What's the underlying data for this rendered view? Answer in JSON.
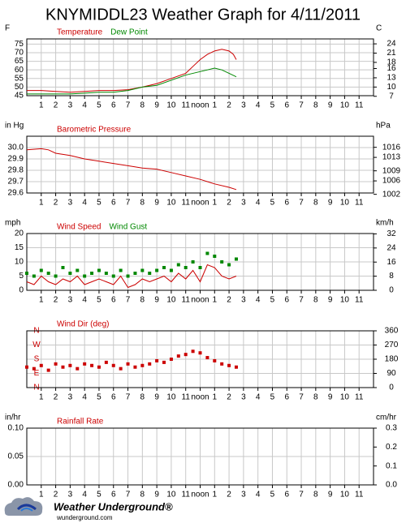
{
  "title": "KNYMIDDL23 Weather Graph for 4/11/2011",
  "chart_data": [
    {
      "type": "line",
      "y_unit": "F",
      "y2_unit": "C",
      "xlim": [
        0,
        24
      ],
      "xticks": [
        1,
        2,
        3,
        4,
        5,
        6,
        7,
        8,
        9,
        10,
        11,
        {
          "value": 12,
          "label": "noon"
        },
        {
          "value": 13,
          "label": "1"
        },
        {
          "value": 14,
          "label": "2"
        },
        {
          "value": 15,
          "label": "3"
        },
        {
          "value": 16,
          "label": "4"
        },
        {
          "value": 17,
          "label": "5"
        },
        {
          "value": 18,
          "label": "6"
        },
        {
          "value": 19,
          "label": "7"
        },
        {
          "value": 20,
          "label": "8"
        },
        {
          "value": 21,
          "label": "9"
        },
        {
          "value": 22,
          "label": "10"
        },
        {
          "value": 23,
          "label": "11"
        }
      ],
      "ylim": [
        45,
        78
      ],
      "yticks": [
        45,
        50,
        55,
        60,
        65,
        70,
        75
      ],
      "y2lim": [
        7.2,
        25.6
      ],
      "y2ticks": [
        7,
        10,
        13,
        16,
        18,
        21,
        24
      ],
      "series": [
        {
          "name": "Temperature",
          "color": "#cc0000",
          "mark": "line",
          "x": [
            0,
            1,
            2,
            3,
            4,
            5,
            6,
            7,
            8,
            9,
            10,
            11,
            11.5,
            12,
            12.5,
            13,
            13.5,
            14,
            14.3,
            14.5
          ],
          "values": [
            48,
            48,
            47.5,
            47,
            47.5,
            48,
            48,
            48.5,
            50,
            52,
            55,
            58,
            62,
            66,
            69,
            71,
            72,
            71,
            69,
            66
          ]
        },
        {
          "name": "Dew Point",
          "color": "#008800",
          "mark": "line",
          "x": [
            0,
            1,
            2,
            3,
            4,
            5,
            6,
            7,
            8,
            9,
            10,
            11,
            12,
            12.5,
            13,
            13.5,
            14,
            14.5
          ],
          "values": [
            46,
            46,
            46,
            46,
            46.5,
            47,
            47,
            48,
            50,
            51,
            54,
            57,
            59,
            60,
            61,
            60,
            58,
            56
          ]
        }
      ]
    },
    {
      "type": "line",
      "y_unit": "in Hg",
      "y2_unit": "hPa",
      "xlim": [
        0,
        24
      ],
      "xticks": [
        1,
        2,
        3,
        4,
        5,
        6,
        7,
        8,
        9,
        10,
        11,
        {
          "value": 12,
          "label": "noon"
        },
        {
          "value": 13,
          "label": "1"
        },
        {
          "value": 14,
          "label": "2"
        },
        {
          "value": 15,
          "label": "3"
        },
        {
          "value": 16,
          "label": "4"
        },
        {
          "value": 17,
          "label": "5"
        },
        {
          "value": 18,
          "label": "6"
        },
        {
          "value": 19,
          "label": "7"
        },
        {
          "value": 20,
          "label": "8"
        },
        {
          "value": 21,
          "label": "9"
        },
        {
          "value": 22,
          "label": "10"
        },
        {
          "value": 23,
          "label": "11"
        }
      ],
      "ylim": [
        29.6,
        30.1
      ],
      "yticks": [
        {
          "value": 29.6,
          "label": "29.6"
        },
        {
          "value": 29.7,
          "label": "29.7"
        },
        {
          "value": 29.8,
          "label": "29.8"
        },
        {
          "value": 29.9,
          "label": "29.9"
        },
        {
          "value": 30.0,
          "label": "30.0"
        }
      ],
      "y2lim": [
        1002.4,
        1019.3
      ],
      "y2ticks": [
        1002,
        1006,
        1009,
        1013,
        1016
      ],
      "series": [
        {
          "name": "Barometric Pressure",
          "color": "#cc0000",
          "mark": "line",
          "x": [
            0,
            1,
            1.5,
            2,
            3,
            4,
            5,
            6,
            7,
            8,
            9,
            10,
            11,
            12,
            13,
            14,
            14.5
          ],
          "values": [
            29.98,
            29.99,
            29.98,
            29.95,
            29.93,
            29.9,
            29.88,
            29.86,
            29.84,
            29.82,
            29.81,
            29.78,
            29.75,
            29.72,
            29.68,
            29.65,
            29.63
          ]
        }
      ]
    },
    {
      "type": "line",
      "y_unit": "mph",
      "y2_unit": "km/h",
      "xlim": [
        0,
        24
      ],
      "xticks": [
        1,
        2,
        3,
        4,
        5,
        6,
        7,
        8,
        9,
        10,
        11,
        {
          "value": 12,
          "label": "noon"
        },
        {
          "value": 13,
          "label": "1"
        },
        {
          "value": 14,
          "label": "2"
        },
        {
          "value": 15,
          "label": "3"
        },
        {
          "value": 16,
          "label": "4"
        },
        {
          "value": 17,
          "label": "5"
        },
        {
          "value": 18,
          "label": "6"
        },
        {
          "value": 19,
          "label": "7"
        },
        {
          "value": 20,
          "label": "8"
        },
        {
          "value": 21,
          "label": "9"
        },
        {
          "value": 22,
          "label": "10"
        },
        {
          "value": 23,
          "label": "11"
        }
      ],
      "ylim": [
        0,
        20
      ],
      "yticks": [
        0,
        5,
        10,
        15,
        20
      ],
      "y2lim": [
        0,
        32.2
      ],
      "y2ticks": [
        0,
        8,
        16,
        24,
        32
      ],
      "series": [
        {
          "name": "Wind Speed",
          "color": "#cc0000",
          "mark": "line",
          "x": [
            0,
            0.5,
            1,
            1.5,
            2,
            2.5,
            3,
            3.5,
            4,
            4.5,
            5,
            5.5,
            6,
            6.5,
            7,
            7.5,
            8,
            8.5,
            9,
            9.5,
            10,
            10.5,
            11,
            11.5,
            12,
            12.5,
            13,
            13.5,
            14,
            14.5
          ],
          "values": [
            3,
            2,
            5,
            3,
            2,
            4,
            3,
            5,
            2,
            3,
            4,
            3,
            2,
            5,
            1,
            2,
            4,
            3,
            4,
            5,
            3,
            6,
            4,
            7,
            3,
            9,
            8,
            5,
            4,
            5
          ]
        },
        {
          "name": "Wind Gust",
          "color": "#008800",
          "mark": "square",
          "x": [
            0,
            0.5,
            1,
            1.5,
            2,
            2.5,
            3,
            3.5,
            4,
            4.5,
            5,
            5.5,
            6,
            6.5,
            7,
            7.5,
            8,
            8.5,
            9,
            9.5,
            10,
            10.5,
            11,
            11.5,
            12,
            12.5,
            13,
            13.5,
            14,
            14.5
          ],
          "values": [
            6,
            5,
            7,
            6,
            5,
            8,
            6,
            7,
            5,
            6,
            7,
            6,
            5,
            7,
            5,
            6,
            7,
            6,
            7,
            8,
            7,
            9,
            8,
            10,
            8,
            13,
            12,
            10,
            9,
            11
          ]
        }
      ]
    },
    {
      "type": "scatter",
      "ytick_position": "inside",
      "ytick_color": "#cc0000",
      "xlim": [
        0,
        24
      ],
      "xticks": [
        1,
        2,
        3,
        4,
        5,
        6,
        7,
        8,
        9,
        10,
        11,
        {
          "value": 12,
          "label": "noon"
        },
        {
          "value": 13,
          "label": "1"
        },
        {
          "value": 14,
          "label": "2"
        },
        {
          "value": 15,
          "label": "3"
        },
        {
          "value": 16,
          "label": "4"
        },
        {
          "value": 17,
          "label": "5"
        },
        {
          "value": 18,
          "label": "6"
        },
        {
          "value": 19,
          "label": "7"
        },
        {
          "value": 20,
          "label": "8"
        },
        {
          "value": 21,
          "label": "9"
        },
        {
          "value": 22,
          "label": "10"
        },
        {
          "value": 23,
          "label": "11"
        }
      ],
      "ylim": [
        0,
        360
      ],
      "yticks": [
        {
          "value": 0,
          "label": "N"
        },
        {
          "value": 90,
          "label": "E"
        },
        {
          "value": 180,
          "label": "S"
        },
        {
          "value": 270,
          "label": "W"
        },
        {
          "value": 360,
          "label": "N"
        }
      ],
      "y2lim": [
        0,
        360
      ],
      "y2ticks": [
        0,
        90,
        180,
        270,
        360
      ],
      "series": [
        {
          "name": "Wind Dir (deg)",
          "color": "#cc0000",
          "mark": "square",
          "x": [
            0,
            0.5,
            1,
            1.5,
            2,
            2.5,
            3,
            3.5,
            4,
            4.5,
            5,
            5.5,
            6,
            6.5,
            7,
            7.5,
            8,
            8.5,
            9,
            9.5,
            10,
            10.5,
            11,
            11.5,
            12,
            12.5,
            13,
            13.5,
            14,
            14.5
          ],
          "values": [
            130,
            120,
            140,
            110,
            150,
            130,
            140,
            120,
            150,
            140,
            130,
            160,
            140,
            120,
            150,
            130,
            140,
            150,
            170,
            160,
            180,
            200,
            210,
            230,
            220,
            190,
            170,
            150,
            140,
            130
          ]
        }
      ]
    },
    {
      "type": "line",
      "y_unit": "in/hr",
      "y2_unit": "cm/hr",
      "xlim": [
        0,
        24
      ],
      "xticks": [
        1,
        2,
        3,
        4,
        5,
        6,
        7,
        8,
        9,
        10,
        11,
        {
          "value": 12,
          "label": "noon"
        },
        {
          "value": 13,
          "label": "1"
        },
        {
          "value": 14,
          "label": "2"
        },
        {
          "value": 15,
          "label": "3"
        },
        {
          "value": 16,
          "label": "4"
        },
        {
          "value": 17,
          "label": "5"
        },
        {
          "value": 18,
          "label": "6"
        },
        {
          "value": 19,
          "label": "7"
        },
        {
          "value": 20,
          "label": "8"
        },
        {
          "value": 21,
          "label": "9"
        },
        {
          "value": 22,
          "label": "10"
        },
        {
          "value": 23,
          "label": "11"
        }
      ],
      "ylim": [
        0,
        0.1
      ],
      "yticks": [
        {
          "value": 0,
          "label": "0.00"
        },
        {
          "value": 0.05,
          "label": "0.05"
        },
        {
          "value": 0.1,
          "label": "0.10"
        }
      ],
      "y2lim": [
        0,
        0.3
      ],
      "y2ticks": [
        {
          "value": 0,
          "label": "0.0"
        },
        {
          "value": 0.1,
          "label": "0.1"
        },
        {
          "value": 0.2,
          "label": "0.2"
        },
        {
          "value": 0.3,
          "label": "0.3"
        }
      ],
      "series": [
        {
          "name": "Rainfall Rate",
          "color": "#cc0000",
          "mark": "line"
        }
      ]
    }
  ],
  "footer": {
    "brand": "Weather Underground®",
    "site": "wunderground.com"
  }
}
